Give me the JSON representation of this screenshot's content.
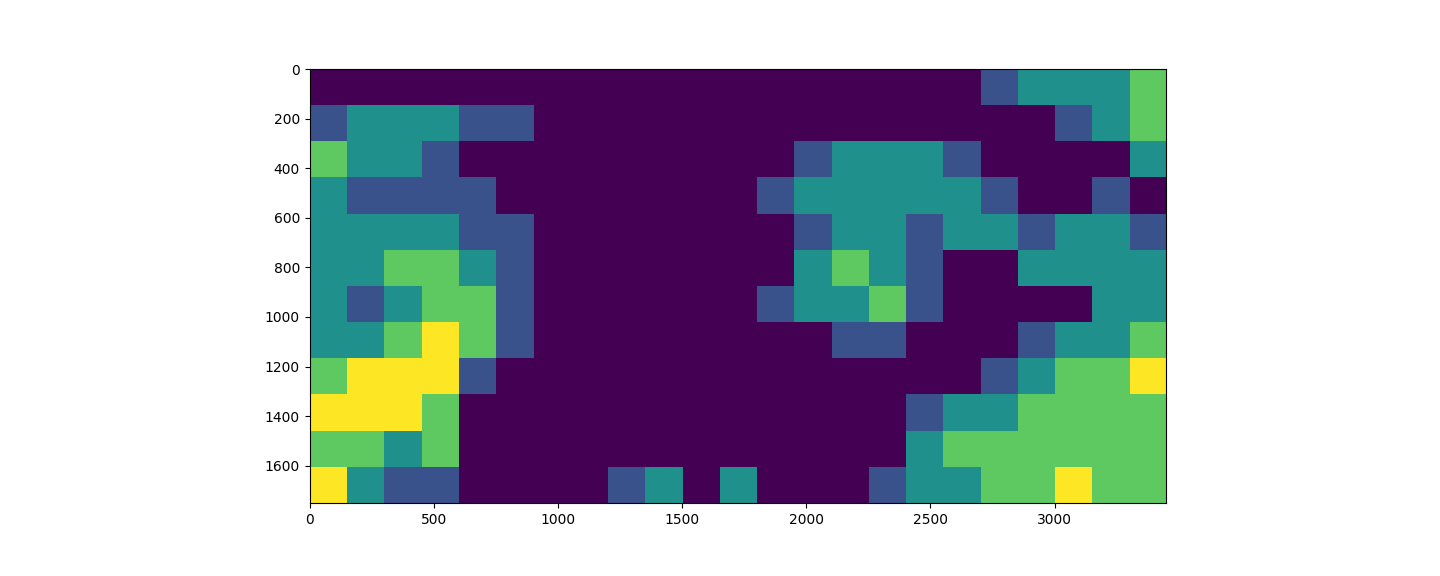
{
  "chart_data": {
    "type": "heatmap",
    "xlim": [
      0,
      3450
    ],
    "ylim": [
      1750,
      0
    ],
    "xticks": [
      0,
      500,
      1000,
      1500,
      2000,
      2500,
      3000
    ],
    "yticks": [
      0,
      200,
      400,
      600,
      800,
      1000,
      1200,
      1400,
      1600
    ],
    "color": "viridis",
    "value_range": [
      0,
      4
    ],
    "cells": [
      [
        0,
        0,
        0,
        0,
        0,
        0,
        0,
        0,
        0,
        0,
        0,
        0,
        0,
        0,
        0,
        0,
        0,
        0,
        1,
        2,
        2,
        2,
        3
      ],
      [
        1,
        2,
        2,
        2,
        1,
        1,
        0,
        0,
        0,
        0,
        0,
        0,
        0,
        0,
        0,
        0,
        0,
        0,
        0,
        0,
        1,
        2,
        3
      ],
      [
        3,
        2,
        2,
        1,
        0,
        0,
        0,
        0,
        0,
        0,
        0,
        0,
        0,
        1,
        2,
        2,
        2,
        1,
        0,
        0,
        0,
        0,
        2
      ],
      [
        2,
        1,
        1,
        1,
        1,
        0,
        0,
        0,
        0,
        0,
        0,
        0,
        1,
        2,
        2,
        2,
        2,
        2,
        1,
        0,
        0,
        1,
        0
      ],
      [
        2,
        2,
        2,
        2,
        1,
        1,
        0,
        0,
        0,
        0,
        0,
        0,
        0,
        1,
        2,
        2,
        1,
        2,
        2,
        1,
        2,
        2,
        1
      ],
      [
        2,
        2,
        3,
        3,
        2,
        1,
        0,
        0,
        0,
        0,
        0,
        0,
        0,
        2,
        3,
        2,
        1,
        0,
        0,
        2,
        2,
        2,
        2
      ],
      [
        2,
        1,
        2,
        3,
        3,
        1,
        0,
        0,
        0,
        0,
        0,
        0,
        1,
        2,
        2,
        3,
        1,
        0,
        0,
        0,
        0,
        2,
        2
      ],
      [
        2,
        2,
        3,
        4,
        3,
        1,
        0,
        0,
        0,
        0,
        0,
        0,
        0,
        0,
        1,
        1,
        0,
        0,
        0,
        1,
        2,
        2,
        3
      ],
      [
        3,
        4,
        4,
        4,
        1,
        0,
        0,
        0,
        0,
        0,
        0,
        0,
        0,
        0,
        0,
        0,
        0,
        0,
        1,
        2,
        3,
        3,
        4
      ],
      [
        4,
        4,
        4,
        3,
        0,
        0,
        0,
        0,
        0,
        0,
        0,
        0,
        0,
        0,
        0,
        0,
        1,
        2,
        2,
        3,
        3,
        3,
        3
      ],
      [
        3,
        3,
        2,
        3,
        0,
        0,
        0,
        0,
        0,
        0,
        0,
        0,
        0,
        0,
        0,
        0,
        2,
        3,
        3,
        3,
        3,
        3,
        3
      ],
      [
        4,
        2,
        1,
        1,
        0,
        0,
        0,
        0,
        1,
        2,
        0,
        2,
        0,
        0,
        0,
        1,
        2,
        2,
        3,
        3,
        4,
        3,
        3
      ]
    ]
  }
}
